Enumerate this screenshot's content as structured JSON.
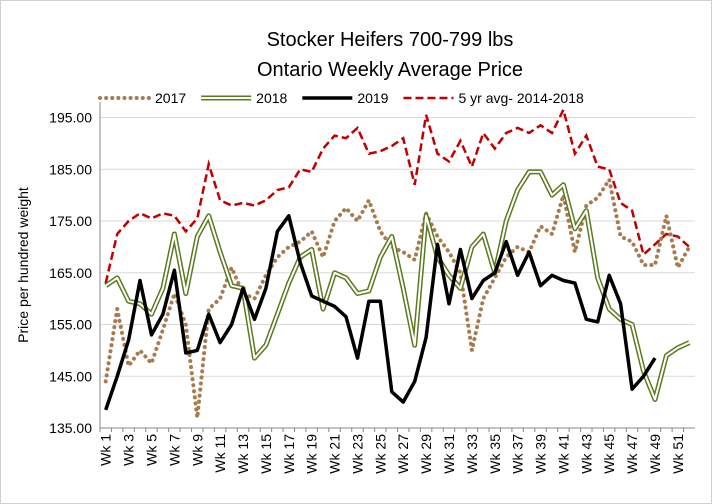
{
  "chart_data": {
    "type": "line",
    "title": "Stocker Heifers 700-799 lbs",
    "subtitle": "Ontario Weekly Average Price",
    "y_label": "Price per hundred weight",
    "categories": [
      "Wk 1",
      null,
      "Wk 3",
      null,
      "Wk 5",
      null,
      "Wk 7",
      null,
      "Wk 9",
      null,
      "Wk 11",
      null,
      "Wk 13",
      null,
      "Wk 15",
      null,
      "Wk 17",
      null,
      "Wk 19",
      null,
      "Wk 21",
      null,
      "Wk 23",
      null,
      "Wk 25",
      null,
      "Wk 27",
      null,
      "Wk 29",
      null,
      "Wk 31",
      null,
      "Wk 33",
      null,
      "Wk 35",
      null,
      "Wk 37",
      null,
      "Wk 39",
      null,
      "Wk 41",
      null,
      "Wk 43",
      null,
      "Wk 45",
      null,
      "Wk 47",
      null,
      "Wk 49",
      null,
      "Wk 51",
      null
    ],
    "series": [
      {
        "name": "2017",
        "color": "#a87b4f",
        "style": "dotted",
        "values": [
          144,
          158,
          147,
          150,
          147.5,
          154,
          161,
          155,
          137,
          158,
          160,
          166,
          161,
          160,
          164.5,
          168,
          170,
          171,
          173,
          168,
          175,
          177.5,
          175,
          179,
          173,
          170,
          169,
          167.5,
          176.5,
          172,
          169,
          165,
          150,
          160,
          164,
          168,
          170,
          169,
          174,
          172.5,
          180,
          169,
          178,
          179.5,
          183,
          172,
          171,
          166.5,
          166.5,
          176,
          166,
          170
        ]
      },
      {
        "name": "2018",
        "color": "#5b7a1f",
        "style": "double",
        "values": [
          162.5,
          164,
          159.5,
          159,
          157,
          162,
          172.5,
          161,
          172,
          176,
          169,
          162.5,
          162,
          148.5,
          151,
          157,
          163,
          168,
          169.5,
          158,
          165,
          164,
          161,
          161.5,
          168,
          172,
          162,
          151,
          176,
          168,
          164.5,
          162,
          170,
          172.5,
          165,
          175,
          181,
          184.5,
          184.5,
          180,
          182,
          173.5,
          177,
          164,
          158,
          156,
          155,
          146,
          140.5,
          149,
          150.5,
          151.5
        ]
      },
      {
        "name": "2019",
        "color": "#000000",
        "style": "solid",
        "values": [
          138.5,
          145,
          152,
          163.5,
          153,
          157,
          165.5,
          149.5,
          150,
          157,
          151.5,
          155,
          162,
          156,
          162,
          173,
          176,
          167,
          160.5,
          159.5,
          158.5,
          156.5,
          148.5,
          159.5,
          159.5,
          142,
          140,
          144,
          152.5,
          170.5,
          159,
          169.5,
          160,
          163.5,
          165,
          171,
          164.5,
          169,
          162.5,
          164.5,
          163.5,
          163,
          156,
          155.5,
          164.5,
          159,
          142.5,
          145,
          148.5,
          null,
          null,
          null
        ]
      },
      {
        "name": "5 yr avg- 2014-2018",
        "color": "#c00000",
        "style": "dashed",
        "values": [
          163,
          172.5,
          175,
          176.5,
          175.5,
          176.5,
          176,
          173,
          175.5,
          186,
          179,
          178,
          178.5,
          178,
          179,
          181,
          181.5,
          185,
          184.5,
          189,
          191.5,
          191,
          193,
          188,
          188.5,
          189.5,
          191,
          182,
          195.5,
          188,
          186.5,
          190.5,
          185.5,
          192,
          189,
          192,
          193,
          192,
          193.5,
          192,
          196.5,
          188,
          191.5,
          185.5,
          185,
          178.5,
          177,
          168.5,
          170.5,
          172.5,
          172,
          170
        ]
      }
    ],
    "ylim": [
      135,
      198
    ],
    "yticks": [
      {
        "value": 135,
        "label": "135.00"
      },
      {
        "value": 145,
        "label": "145.00"
      },
      {
        "value": 155,
        "label": "155.00"
      },
      {
        "value": 165,
        "label": "165.00"
      },
      {
        "value": 175,
        "label": "175.00"
      },
      {
        "value": 185,
        "label": "185.00"
      },
      {
        "value": 195,
        "label": "195.00"
      }
    ],
    "grid": true,
    "legend": "top"
  }
}
